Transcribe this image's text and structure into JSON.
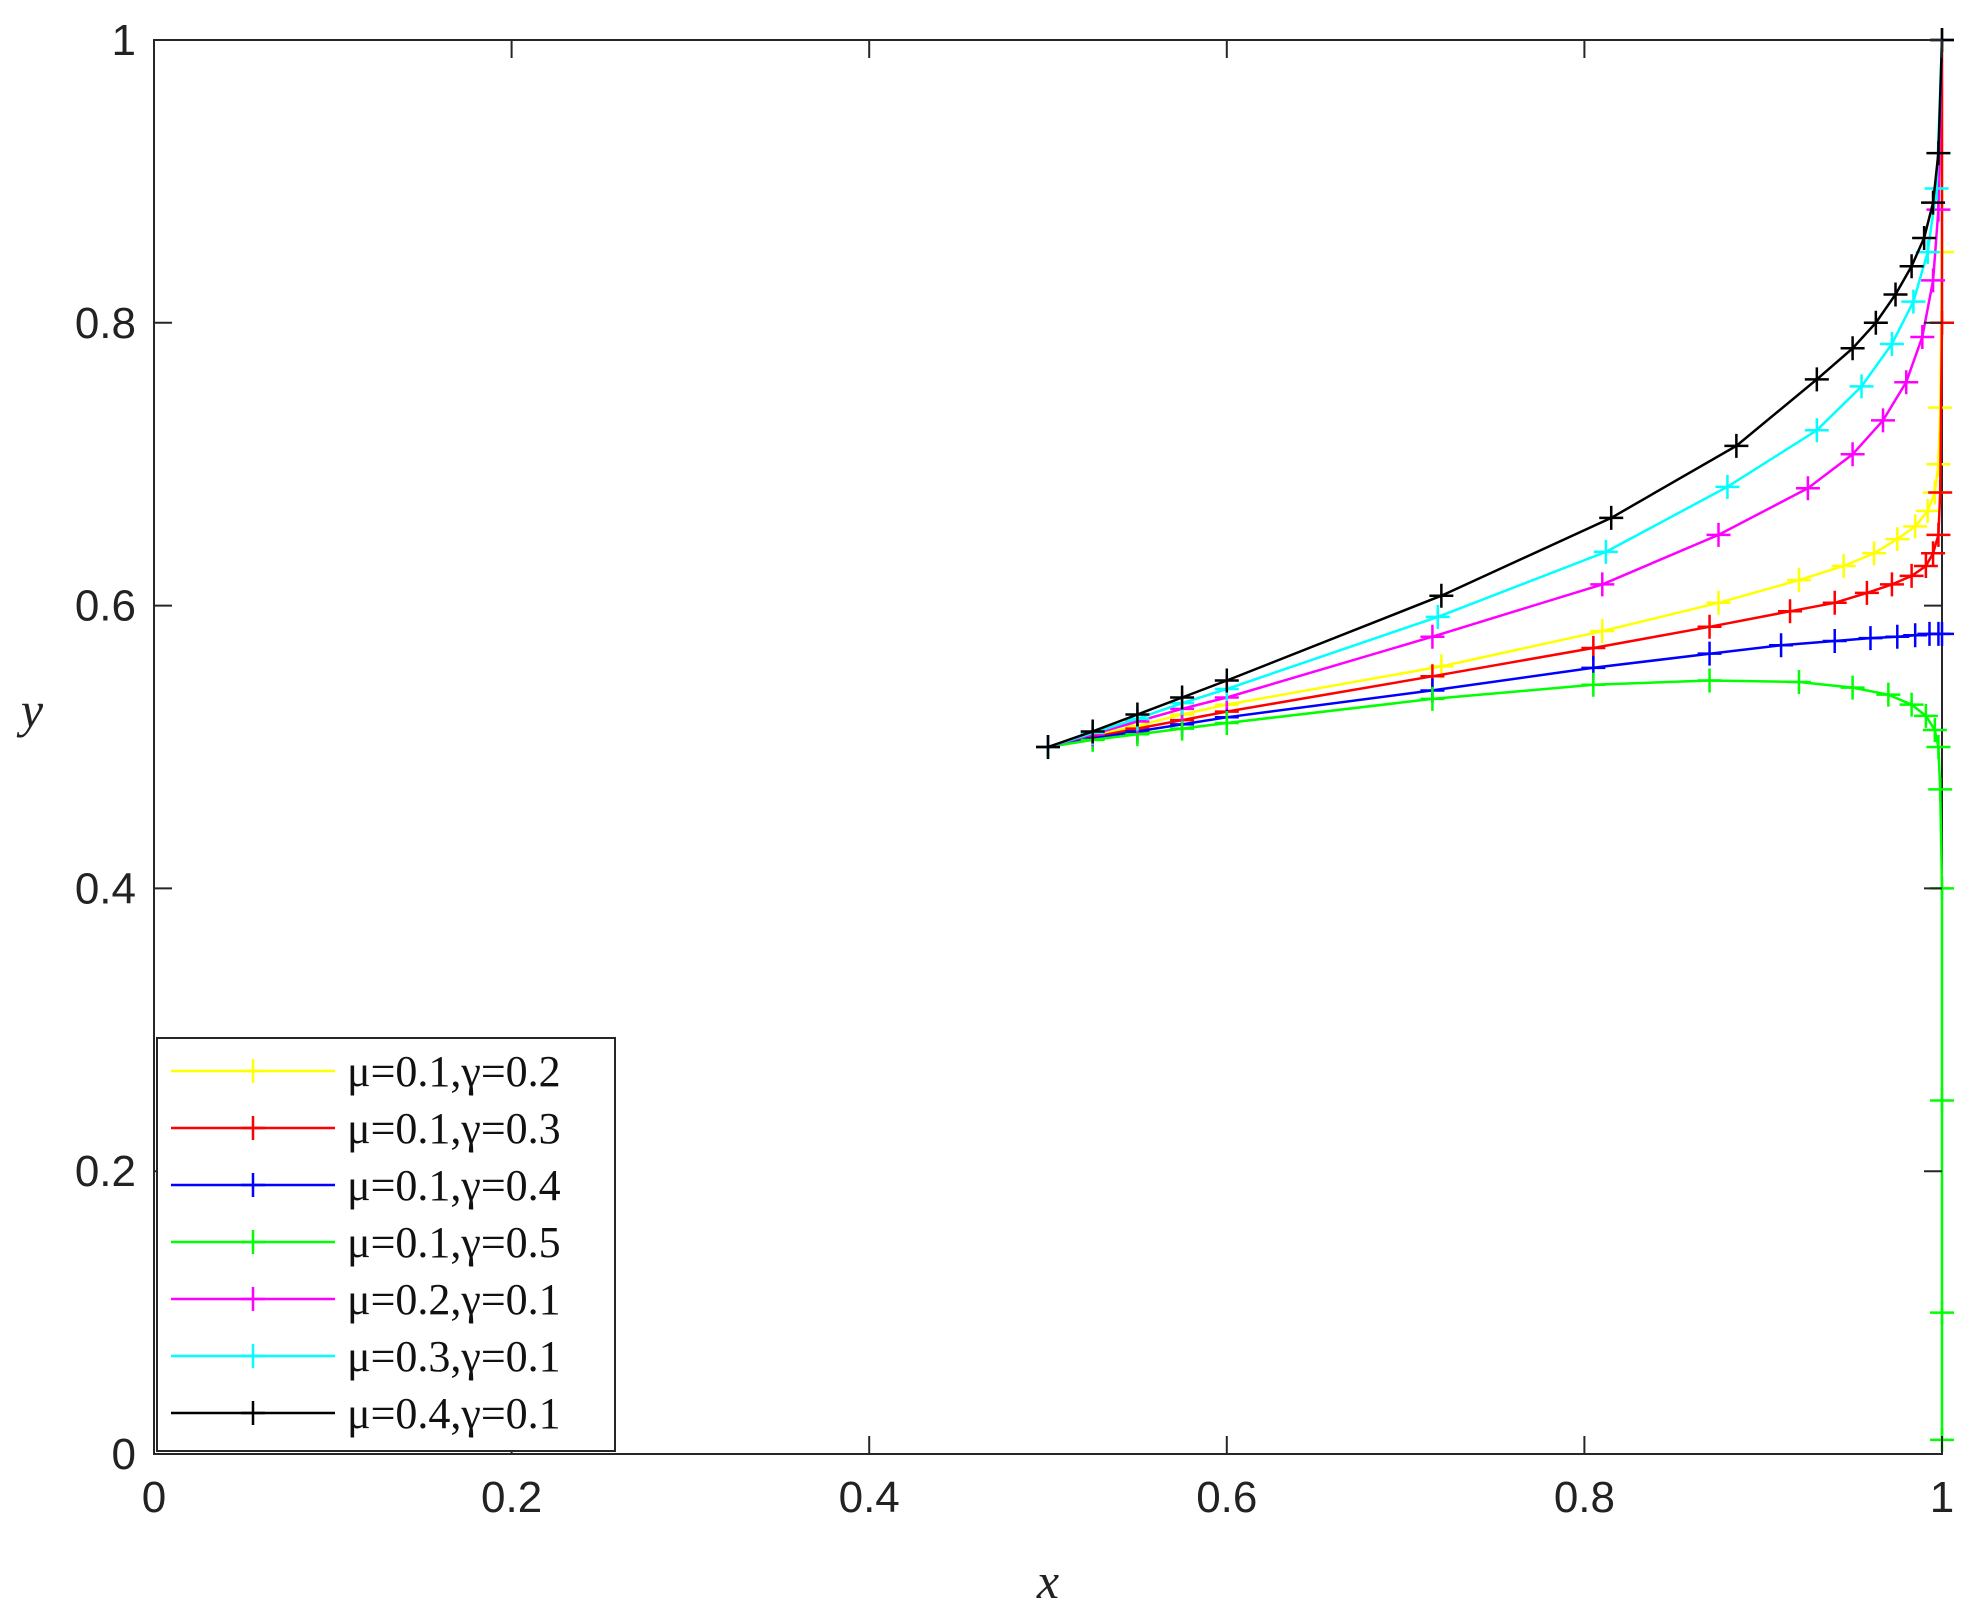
{
  "chart_data": {
    "type": "line",
    "xlabel": "x",
    "ylabel": "y",
    "xlim": [
      0,
      1
    ],
    "ylim": [
      0,
      1
    ],
    "xticks": [
      "0",
      "0.2",
      "0.4",
      "0.6",
      "0.8",
      "1"
    ],
    "yticks": [
      "0",
      "0.2",
      "0.4",
      "0.6",
      "0.8",
      "1"
    ],
    "grid": false,
    "legend_position": "bottom-left",
    "marker": "+",
    "series": [
      {
        "name": "μ=0.1,γ=0.2",
        "color": "#ffff00",
        "x": [
          0.5,
          0.525,
          0.55,
          0.575,
          0.6,
          0.72,
          0.81,
          0.875,
          0.92,
          0.945,
          0.962,
          0.975,
          0.985,
          0.992,
          0.996,
          0.998,
          0.999,
          1.0,
          1.0
        ],
        "y": [
          0.5,
          0.508,
          0.515,
          0.523,
          0.53,
          0.557,
          0.582,
          0.602,
          0.618,
          0.628,
          0.637,
          0.647,
          0.656,
          0.667,
          0.68,
          0.7,
          0.74,
          0.85,
          1.0
        ]
      },
      {
        "name": "μ=0.1,γ=0.3",
        "color": "#ff0000",
        "x": [
          0.5,
          0.525,
          0.55,
          0.575,
          0.6,
          0.715,
          0.805,
          0.87,
          0.915,
          0.94,
          0.958,
          0.972,
          0.983,
          0.991,
          0.995,
          0.998,
          0.999,
          1.0,
          1.0
        ],
        "y": [
          0.5,
          0.507,
          0.513,
          0.519,
          0.525,
          0.55,
          0.57,
          0.585,
          0.596,
          0.602,
          0.609,
          0.615,
          0.621,
          0.628,
          0.637,
          0.65,
          0.68,
          0.8,
          1.0
        ]
      },
      {
        "name": "μ=0.1,γ=0.4",
        "color": "#0000ff",
        "x": [
          0.5,
          0.525,
          0.55,
          0.575,
          0.6,
          0.715,
          0.805,
          0.87,
          0.91,
          0.94,
          0.96,
          0.975,
          0.985,
          0.993,
          0.998,
          1.0
        ],
        "y": [
          0.5,
          0.506,
          0.511,
          0.516,
          0.521,
          0.54,
          0.556,
          0.566,
          0.572,
          0.575,
          0.577,
          0.578,
          0.579,
          0.58,
          0.58,
          0.58
        ]
      },
      {
        "name": "μ=0.1,γ=0.5",
        "color": "#00ff00",
        "x": [
          0.5,
          0.525,
          0.55,
          0.575,
          0.6,
          0.715,
          0.805,
          0.87,
          0.92,
          0.95,
          0.97,
          0.983,
          0.991,
          0.996,
          0.998,
          0.999,
          1.0,
          1.0,
          1.0,
          1.0
        ],
        "y": [
          0.5,
          0.505,
          0.509,
          0.513,
          0.517,
          0.534,
          0.544,
          0.547,
          0.546,
          0.542,
          0.537,
          0.53,
          0.522,
          0.512,
          0.5,
          0.47,
          0.4,
          0.25,
          0.1,
          0.01
        ]
      },
      {
        "name": "μ=0.2,γ=0.1",
        "color": "#ff00ff",
        "x": [
          0.5,
          0.525,
          0.55,
          0.575,
          0.6,
          0.715,
          0.81,
          0.875,
          0.925,
          0.95,
          0.967,
          0.98,
          0.989,
          0.995,
          0.998,
          1.0
        ],
        "y": [
          0.5,
          0.509,
          0.518,
          0.527,
          0.535,
          0.578,
          0.615,
          0.65,
          0.683,
          0.707,
          0.731,
          0.758,
          0.79,
          0.83,
          0.88,
          1.0
        ]
      },
      {
        "name": "μ=0.3,γ=0.1",
        "color": "#00ffff",
        "x": [
          0.5,
          0.525,
          0.55,
          0.575,
          0.6,
          0.718,
          0.812,
          0.88,
          0.93,
          0.955,
          0.972,
          0.984,
          0.992,
          0.997,
          1.0
        ],
        "y": [
          0.5,
          0.51,
          0.52,
          0.531,
          0.541,
          0.592,
          0.638,
          0.684,
          0.724,
          0.755,
          0.785,
          0.815,
          0.85,
          0.895,
          1.0
        ]
      },
      {
        "name": "μ=0.4,γ=0.1",
        "color": "#000000",
        "x": [
          0.5,
          0.525,
          0.55,
          0.575,
          0.6,
          0.72,
          0.815,
          0.885,
          0.93,
          0.95,
          0.963,
          0.974,
          0.983,
          0.99,
          0.995,
          0.998,
          1.0
        ],
        "y": [
          0.5,
          0.511,
          0.523,
          0.535,
          0.547,
          0.607,
          0.662,
          0.713,
          0.76,
          0.782,
          0.8,
          0.82,
          0.84,
          0.86,
          0.885,
          0.92,
          1.0
        ]
      }
    ]
  }
}
